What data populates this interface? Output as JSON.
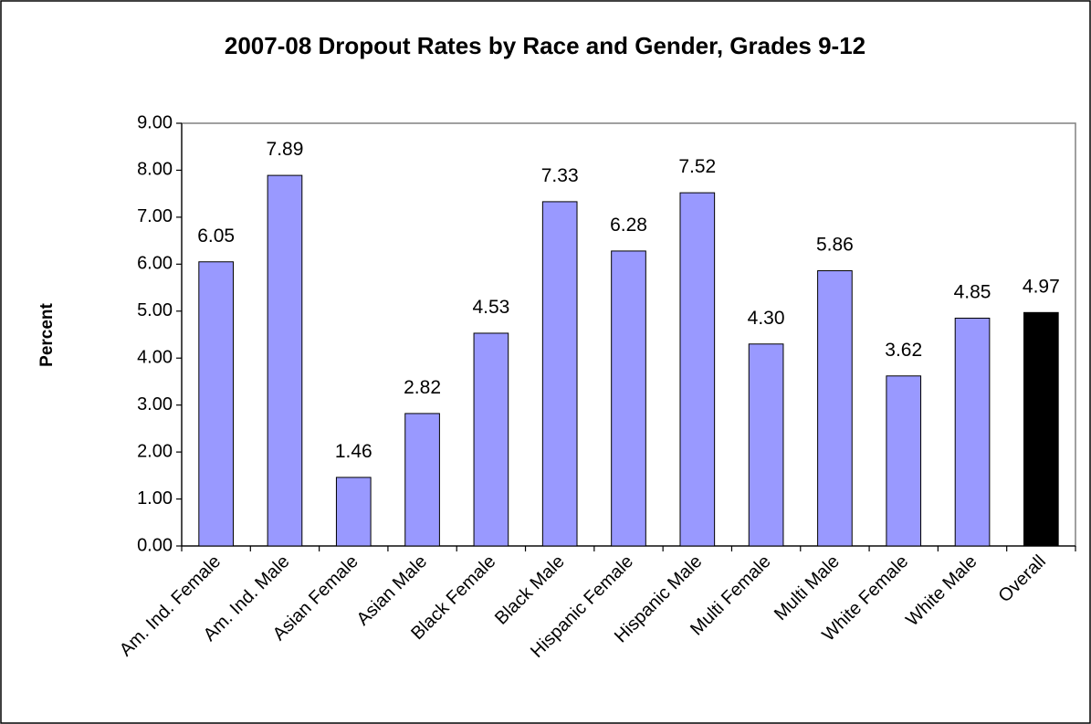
{
  "chart_data": {
    "type": "bar",
    "title": "2007-08 Dropout Rates by Race and Gender, Grades 9-12",
    "y_label": "Percent",
    "categories": [
      "Am. Ind. Female",
      "Am. Ind. Male",
      "Asian Female",
      "Asian Male",
      "Black Female",
      "Black Male",
      "Hispanic Female",
      "Hispanic Male",
      "Multi Female",
      "Multi Male",
      "White Female",
      "White Male",
      "Overall"
    ],
    "values": [
      6.05,
      7.89,
      1.46,
      2.82,
      4.53,
      7.33,
      6.28,
      7.52,
      4.3,
      5.86,
      3.62,
      4.85,
      4.97
    ],
    "value_labels": [
      "6.05",
      "7.89",
      "1.46",
      "2.82",
      "4.53",
      "7.33",
      "6.28",
      "7.52",
      "4.30",
      "5.86",
      "3.62",
      "4.85",
      "4.97"
    ],
    "colors": [
      "#9999ff",
      "#9999ff",
      "#9999ff",
      "#9999ff",
      "#9999ff",
      "#9999ff",
      "#9999ff",
      "#9999ff",
      "#9999ff",
      "#9999ff",
      "#9999ff",
      "#9999ff",
      "#000000"
    ],
    "ylim": [
      0,
      9
    ],
    "yticks": [
      {
        "value": 0,
        "label": "0.00"
      },
      {
        "value": 1,
        "label": "1.00"
      },
      {
        "value": 2,
        "label": "2.00"
      },
      {
        "value": 3,
        "label": "3.00"
      },
      {
        "value": 4,
        "label": "4.00"
      },
      {
        "value": 5,
        "label": "5.00"
      },
      {
        "value": 6,
        "label": "6.00"
      },
      {
        "value": 7,
        "label": "7.00"
      },
      {
        "value": 8,
        "label": "8.00"
      },
      {
        "value": 9,
        "label": "9.00"
      }
    ],
    "grid": false
  }
}
